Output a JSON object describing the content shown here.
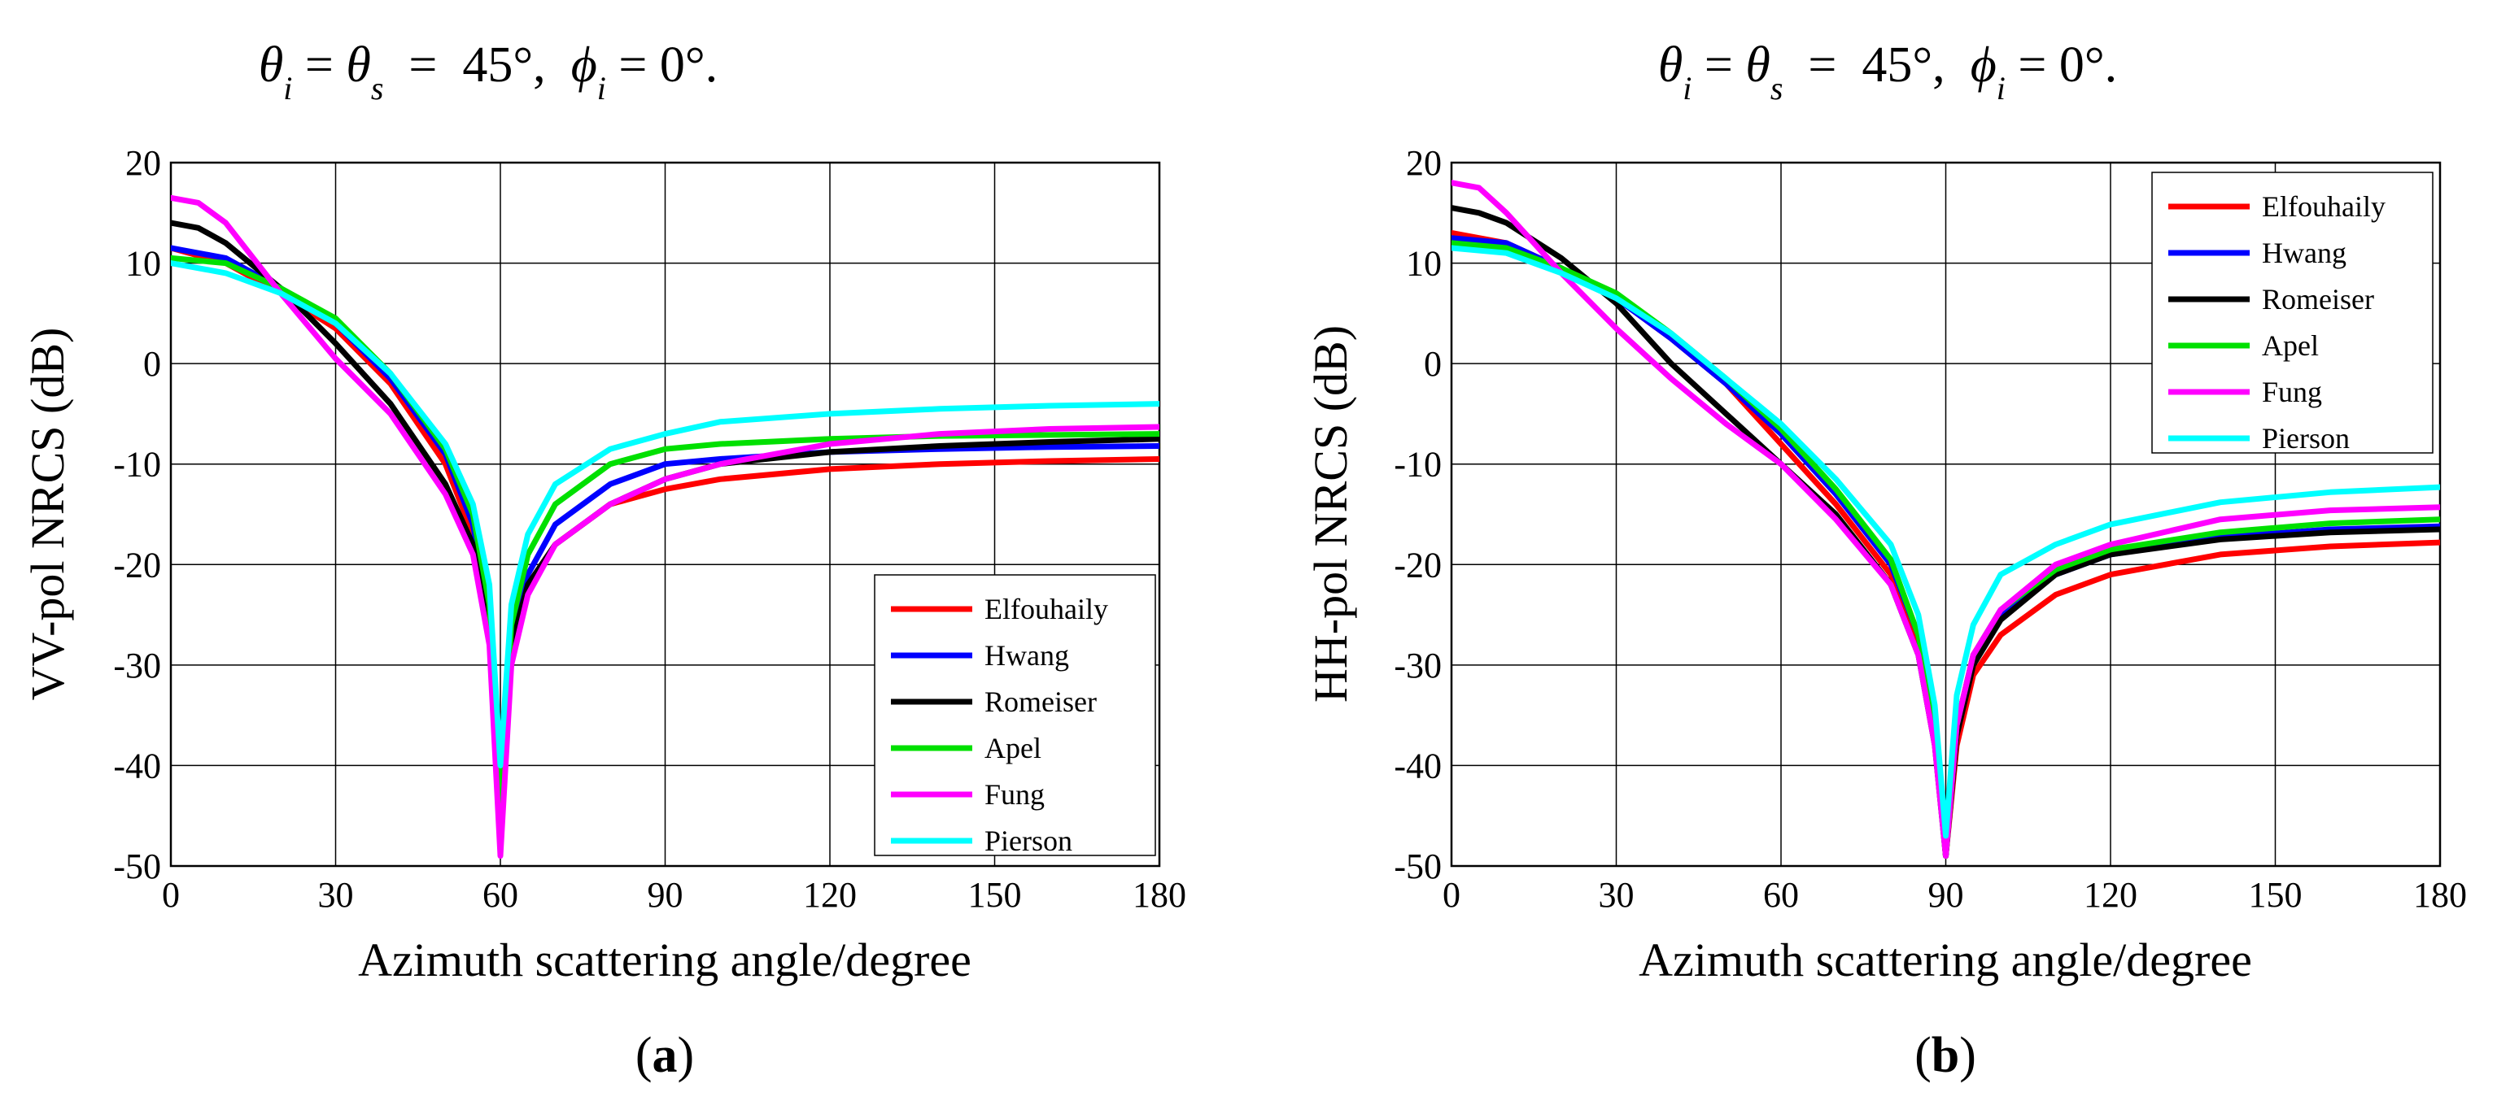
{
  "charts": [
    {
      "id": "a",
      "type": "line",
      "title": {
        "theta_i": "θ",
        "sub_i": "i",
        "theta_s": "θ",
        "sub_s": "s",
        "mid": " = ",
        "eq": "  =  45°,  ",
        "phi": "ϕ",
        "sub_phi": "i",
        "tail": " = 0°."
      },
      "xlabel": "Azimuth scattering angle/degree",
      "ylabel": "VV-pol NRCS (dB)",
      "caption": {
        "open": "(",
        "letter": "a",
        "close": ")"
      },
      "xticks": [
        "0",
        "30",
        "60",
        "90",
        "120",
        "150",
        "180"
      ],
      "yticks": [
        "20",
        "10",
        "0",
        "-10",
        "-20",
        "-30",
        "-40",
        "-50"
      ],
      "xlim": [
        0,
        180
      ],
      "ylim": [
        -50,
        20
      ],
      "legend_position": "bottom-right"
    },
    {
      "id": "b",
      "type": "line",
      "title": {
        "theta_i": "θ",
        "sub_i": "i",
        "theta_s": "θ",
        "sub_s": "s",
        "mid": " = ",
        "eq": "  =  45°,  ",
        "phi": "ϕ",
        "sub_phi": "i",
        "tail": " = 0°."
      },
      "xlabel": "Azimuth scattering angle/degree",
      "ylabel": "HH-pol NRCS (dB)",
      "caption": {
        "open": "(",
        "letter": "b",
        "close": ")"
      },
      "xticks": [
        "0",
        "30",
        "60",
        "90",
        "120",
        "150",
        "180"
      ],
      "yticks": [
        "20",
        "10",
        "0",
        "-10",
        "-20",
        "-30",
        "-40",
        "-50"
      ],
      "xlim": [
        0,
        180
      ],
      "ylim": [
        -50,
        20
      ],
      "legend_position": "top-right"
    }
  ],
  "chart_data": [
    {
      "type": "line",
      "title": "θi = θs = 45°, ϕi = 0°.",
      "xlabel": "Azimuth scattering angle/degree",
      "ylabel": "VV-pol NRCS (dB)",
      "xlim": [
        0,
        180
      ],
      "ylim": [
        -50,
        20
      ],
      "series": [
        {
          "name": "Elfouhaily",
          "color": "#ff0000",
          "points": [
            [
              0,
              11.5
            ],
            [
              10,
              10
            ],
            [
              20,
              7
            ],
            [
              30,
              3.5
            ],
            [
              40,
              -2
            ],
            [
              50,
              -10
            ],
            [
              55,
              -17
            ],
            [
              58,
              -26
            ],
            [
              60,
              -44
            ],
            [
              62,
              -28
            ],
            [
              65,
              -22
            ],
            [
              70,
              -18
            ],
            [
              80,
              -14
            ],
            [
              90,
              -12.5
            ],
            [
              100,
              -11.5
            ],
            [
              120,
              -10.5
            ],
            [
              140,
              -10
            ],
            [
              160,
              -9.7
            ],
            [
              180,
              -9.5
            ]
          ]
        },
        {
          "name": "Hwang",
          "color": "#0000ff",
          "points": [
            [
              0,
              11.5
            ],
            [
              10,
              10.5
            ],
            [
              20,
              7.5
            ],
            [
              30,
              4
            ],
            [
              40,
              -1.5
            ],
            [
              50,
              -9
            ],
            [
              55,
              -16
            ],
            [
              58,
              -25
            ],
            [
              60,
              -44
            ],
            [
              62,
              -27
            ],
            [
              65,
              -21
            ],
            [
              70,
              -16
            ],
            [
              80,
              -12
            ],
            [
              90,
              -10
            ],
            [
              100,
              -9.5
            ],
            [
              120,
              -8.8
            ],
            [
              140,
              -8.5
            ],
            [
              160,
              -8.3
            ],
            [
              180,
              -8.2
            ]
          ]
        },
        {
          "name": "Romeiser",
          "color": "#000000",
          "points": [
            [
              0,
              14
            ],
            [
              5,
              13.5
            ],
            [
              10,
              12
            ],
            [
              20,
              7.5
            ],
            [
              30,
              2
            ],
            [
              40,
              -4
            ],
            [
              50,
              -12
            ],
            [
              55,
              -18
            ],
            [
              58,
              -26
            ],
            [
              60,
              -44
            ],
            [
              62,
              -28
            ],
            [
              65,
              -22
            ],
            [
              70,
              -18
            ],
            [
              80,
              -14
            ],
            [
              90,
              -11.5
            ],
            [
              100,
              -10
            ],
            [
              120,
              -8.8
            ],
            [
              140,
              -8.2
            ],
            [
              160,
              -7.8
            ],
            [
              180,
              -7.5
            ]
          ]
        },
        {
          "name": "Apel",
          "color": "#00e000",
          "points": [
            [
              0,
              10.5
            ],
            [
              10,
              10
            ],
            [
              20,
              7.5
            ],
            [
              30,
              4.5
            ],
            [
              40,
              -1
            ],
            [
              50,
              -8.5
            ],
            [
              55,
              -15
            ],
            [
              58,
              -24
            ],
            [
              60,
              -44
            ],
            [
              62,
              -26
            ],
            [
              65,
              -19
            ],
            [
              70,
              -14
            ],
            [
              80,
              -10
            ],
            [
              90,
              -8.5
            ],
            [
              100,
              -8
            ],
            [
              120,
              -7.5
            ],
            [
              140,
              -7.2
            ],
            [
              160,
              -7.1
            ],
            [
              180,
              -7
            ]
          ]
        },
        {
          "name": "Fung",
          "color": "#ff00ff",
          "points": [
            [
              0,
              16.5
            ],
            [
              5,
              16
            ],
            [
              10,
              14
            ],
            [
              20,
              7
            ],
            [
              30,
              0.5
            ],
            [
              40,
              -5
            ],
            [
              50,
              -13
            ],
            [
              55,
              -19
            ],
            [
              58,
              -28
            ],
            [
              60,
              -49
            ],
            [
              62,
              -30
            ],
            [
              65,
              -23
            ],
            [
              70,
              -18
            ],
            [
              80,
              -14
            ],
            [
              90,
              -11.5
            ],
            [
              100,
              -10
            ],
            [
              120,
              -8
            ],
            [
              140,
              -7
            ],
            [
              160,
              -6.5
            ],
            [
              180,
              -6.3
            ]
          ]
        },
        {
          "name": "Pierson",
          "color": "#00ffff",
          "points": [
            [
              0,
              10
            ],
            [
              10,
              9
            ],
            [
              20,
              7
            ],
            [
              30,
              4
            ],
            [
              40,
              -1
            ],
            [
              50,
              -8
            ],
            [
              55,
              -14
            ],
            [
              58,
              -22
            ],
            [
              60,
              -40
            ],
            [
              62,
              -24
            ],
            [
              65,
              -17
            ],
            [
              70,
              -12
            ],
            [
              80,
              -8.5
            ],
            [
              90,
              -7
            ],
            [
              100,
              -5.8
            ],
            [
              120,
              -5
            ],
            [
              140,
              -4.5
            ],
            [
              160,
              -4.2
            ],
            [
              180,
              -4
            ]
          ]
        }
      ]
    },
    {
      "type": "line",
      "title": "θi = θs = 45°, ϕi = 0°.",
      "xlabel": "Azimuth scattering angle/degree",
      "ylabel": "HH-pol NRCS (dB)",
      "xlim": [
        0,
        180
      ],
      "ylim": [
        -50,
        20
      ],
      "series": [
        {
          "name": "Elfouhaily",
          "color": "#ff0000",
          "points": [
            [
              0,
              13
            ],
            [
              10,
              12
            ],
            [
              20,
              9.5
            ],
            [
              30,
              6.5
            ],
            [
              40,
              2.5
            ],
            [
              50,
              -2
            ],
            [
              60,
              -8
            ],
            [
              70,
              -14
            ],
            [
              80,
              -21
            ],
            [
              85,
              -28
            ],
            [
              88,
              -37
            ],
            [
              90,
              -49
            ],
            [
              92,
              -38
            ],
            [
              95,
              -31
            ],
            [
              100,
              -27
            ],
            [
              110,
              -23
            ],
            [
              120,
              -21
            ],
            [
              140,
              -19
            ],
            [
              160,
              -18.2
            ],
            [
              180,
              -17.8
            ]
          ]
        },
        {
          "name": "Hwang",
          "color": "#0000ff",
          "points": [
            [
              0,
              12.5
            ],
            [
              10,
              12
            ],
            [
              20,
              9.5
            ],
            [
              30,
              6.5
            ],
            [
              40,
              2.5
            ],
            [
              50,
              -2
            ],
            [
              60,
              -7
            ],
            [
              70,
              -13
            ],
            [
              80,
              -20
            ],
            [
              85,
              -27
            ],
            [
              88,
              -36
            ],
            [
              90,
              -49
            ],
            [
              92,
              -36
            ],
            [
              95,
              -29
            ],
            [
              100,
              -25
            ],
            [
              110,
              -21
            ],
            [
              120,
              -19
            ],
            [
              140,
              -17.3
            ],
            [
              160,
              -16.5
            ],
            [
              180,
              -16.2
            ]
          ]
        },
        {
          "name": "Romeiser",
          "color": "#000000",
          "points": [
            [
              0,
              15.5
            ],
            [
              5,
              15
            ],
            [
              10,
              14
            ],
            [
              20,
              10.5
            ],
            [
              30,
              6
            ],
            [
              40,
              0
            ],
            [
              50,
              -5
            ],
            [
              60,
              -10
            ],
            [
              70,
              -15
            ],
            [
              80,
              -22
            ],
            [
              85,
              -29
            ],
            [
              88,
              -38
            ],
            [
              90,
              -49
            ],
            [
              92,
              -37
            ],
            [
              95,
              -30
            ],
            [
              100,
              -25.5
            ],
            [
              110,
              -21
            ],
            [
              120,
              -19
            ],
            [
              140,
              -17.5
            ],
            [
              160,
              -16.8
            ],
            [
              180,
              -16.5
            ]
          ]
        },
        {
          "name": "Apel",
          "color": "#00e000",
          "points": [
            [
              0,
              12
            ],
            [
              10,
              11.5
            ],
            [
              20,
              9.5
            ],
            [
              30,
              7
            ],
            [
              40,
              3
            ],
            [
              50,
              -1.5
            ],
            [
              60,
              -6.5
            ],
            [
              70,
              -12.5
            ],
            [
              80,
              -19.5
            ],
            [
              85,
              -27
            ],
            [
              88,
              -36
            ],
            [
              90,
              -49
            ],
            [
              92,
              -36
            ],
            [
              95,
              -29
            ],
            [
              100,
              -24.5
            ],
            [
              110,
              -20.5
            ],
            [
              120,
              -18.5
            ],
            [
              140,
              -16.8
            ],
            [
              160,
              -15.9
            ],
            [
              180,
              -15.5
            ]
          ]
        },
        {
          "name": "Fung",
          "color": "#ff00ff",
          "points": [
            [
              0,
              18
            ],
            [
              5,
              17.5
            ],
            [
              10,
              15
            ],
            [
              20,
              9
            ],
            [
              30,
              3.5
            ],
            [
              40,
              -1.5
            ],
            [
              50,
              -6
            ],
            [
              60,
              -10
            ],
            [
              70,
              -15.5
            ],
            [
              80,
              -22
            ],
            [
              85,
              -29
            ],
            [
              88,
              -38
            ],
            [
              90,
              -49
            ],
            [
              92,
              -36
            ],
            [
              95,
              -29
            ],
            [
              100,
              -24.5
            ],
            [
              110,
              -20
            ],
            [
              120,
              -18
            ],
            [
              140,
              -15.5
            ],
            [
              160,
              -14.6
            ],
            [
              180,
              -14.3
            ]
          ]
        },
        {
          "name": "Pierson",
          "color": "#00ffff",
          "points": [
            [
              0,
              11.5
            ],
            [
              10,
              11
            ],
            [
              20,
              9
            ],
            [
              30,
              6.5
            ],
            [
              40,
              3
            ],
            [
              50,
              -1.5
            ],
            [
              60,
              -6
            ],
            [
              70,
              -11.5
            ],
            [
              80,
              -18
            ],
            [
              85,
              -25
            ],
            [
              88,
              -34
            ],
            [
              90,
              -47
            ],
            [
              92,
              -33
            ],
            [
              95,
              -26
            ],
            [
              100,
              -21
            ],
            [
              110,
              -18
            ],
            [
              120,
              -16
            ],
            [
              140,
              -13.8
            ],
            [
              160,
              -12.8
            ],
            [
              180,
              -12.3
            ]
          ]
        }
      ]
    }
  ]
}
